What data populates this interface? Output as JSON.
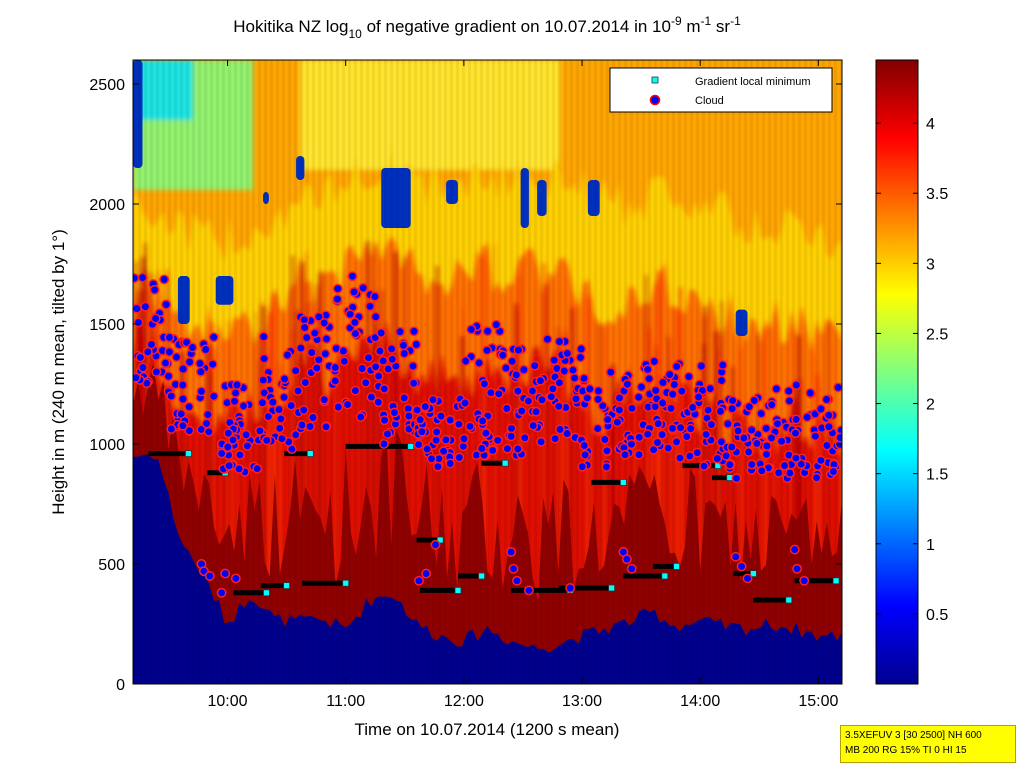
{
  "chart_data": {
    "type": "heatmap",
    "title_parts": {
      "prefix": "Hokitika NZ log",
      "sub": "10",
      "middle": " of negative gradient on 10.07.2014 in 10",
      "sup1": "-9",
      "unit1": " m",
      "sup2": "-1",
      "unit2": " sr",
      "sup3": "-1"
    },
    "xlabel": "Time on 10.07.2014 (1200 s mean)",
    "ylabel": "Height in m (240 m mean, tilted by 1°)",
    "x_range_hours": [
      9.2,
      15.2
    ],
    "xticks": [
      "10:00",
      "11:00",
      "12:00",
      "13:00",
      "14:00",
      "15:00"
    ],
    "xtick_hours": [
      10,
      11,
      12,
      13,
      14,
      15
    ],
    "ylim": [
      0,
      2600
    ],
    "yticks": [
      0,
      500,
      1000,
      1500,
      2000,
      2500
    ],
    "colorbar": {
      "colormap": "jet",
      "range": [
        0,
        4.45
      ],
      "ticks": [
        0.5,
        1,
        1.5,
        2,
        2.5,
        3,
        3.5,
        4
      ],
      "tick_labels": [
        "0.5",
        "1",
        "1.5",
        "2",
        "2.5",
        "3",
        "3.5",
        "4"
      ]
    },
    "legend": {
      "position": "top-right",
      "entries": [
        {
          "label": "Gradient local minimum",
          "marker": "square",
          "color": "#00ffff"
        },
        {
          "label": "Cloud",
          "marker": "circle",
          "color": "#0000ff",
          "edge": "#ff0000"
        }
      ]
    },
    "profiles": [
      {
        "t": 9.2,
        "ground": 950,
        "red": 1450,
        "orange": 1700,
        "yellow": 2050
      },
      {
        "t": 9.4,
        "ground": 960,
        "red": 1380,
        "orange": 1650,
        "yellow": 1950
      },
      {
        "t": 9.6,
        "ground": 600,
        "red": 1200,
        "orange": 1550,
        "yellow": 1900
      },
      {
        "t": 9.8,
        "ground": 450,
        "red": 1100,
        "orange": 1500,
        "yellow": 1850
      },
      {
        "t": 10.0,
        "ground": 250,
        "red": 1050,
        "orange": 1450,
        "yellow": 1850
      },
      {
        "t": 10.2,
        "ground": 380,
        "red": 1150,
        "orange": 1500,
        "yellow": 1900
      },
      {
        "t": 10.4,
        "ground": 270,
        "red": 1150,
        "orange": 1600,
        "yellow": 1950
      },
      {
        "t": 10.6,
        "ground": 260,
        "red": 1350,
        "orange": 1700,
        "yellow": 2000
      },
      {
        "t": 10.8,
        "ground": 270,
        "red": 1250,
        "orange": 1650,
        "yellow": 2000
      },
      {
        "t": 11.0,
        "ground": 230,
        "red": 1450,
        "orange": 1750,
        "yellow": 2100
      },
      {
        "t": 11.2,
        "ground": 350,
        "red": 1450,
        "orange": 1800,
        "yellow": 2150
      },
      {
        "t": 11.4,
        "ground": 380,
        "red": 1400,
        "orange": 1800,
        "yellow": 2150
      },
      {
        "t": 11.6,
        "ground": 250,
        "red": 1300,
        "orange": 1700,
        "yellow": 2100
      },
      {
        "t": 11.8,
        "ground": 200,
        "red": 1250,
        "orange": 1700,
        "yellow": 2050
      },
      {
        "t": 12.0,
        "ground": 180,
        "red": 1300,
        "orange": 1750,
        "yellow": 2100
      },
      {
        "t": 12.2,
        "ground": 230,
        "red": 1350,
        "orange": 1750,
        "yellow": 2100
      },
      {
        "t": 12.4,
        "ground": 180,
        "red": 1300,
        "orange": 1700,
        "yellow": 2100
      },
      {
        "t": 12.6,
        "ground": 150,
        "red": 1350,
        "orange": 1750,
        "yellow": 2150
      },
      {
        "t": 12.8,
        "ground": 170,
        "red": 1300,
        "orange": 1700,
        "yellow": 2100
      },
      {
        "t": 13.0,
        "ground": 200,
        "red": 1200,
        "orange": 1650,
        "yellow": 2050
      },
      {
        "t": 13.2,
        "ground": 230,
        "red": 1150,
        "orange": 1600,
        "yellow": 2000
      },
      {
        "t": 13.4,
        "ground": 260,
        "red": 1200,
        "orange": 1600,
        "yellow": 2000
      },
      {
        "t": 13.6,
        "ground": 300,
        "red": 1250,
        "orange": 1650,
        "yellow": 2050
      },
      {
        "t": 13.8,
        "ground": 240,
        "red": 1250,
        "orange": 1650,
        "yellow": 2050
      },
      {
        "t": 14.0,
        "ground": 260,
        "red": 1150,
        "orange": 1600,
        "yellow": 2000
      },
      {
        "t": 14.2,
        "ground": 240,
        "red": 1100,
        "orange": 1550,
        "yellow": 1950
      },
      {
        "t": 14.4,
        "ground": 230,
        "red": 1050,
        "orange": 1500,
        "yellow": 1900
      },
      {
        "t": 14.6,
        "ground": 250,
        "red": 1050,
        "orange": 1500,
        "yellow": 1900
      },
      {
        "t": 14.8,
        "ground": 230,
        "red": 1100,
        "orange": 1500,
        "yellow": 1900
      },
      {
        "t": 15.0,
        "ground": 200,
        "red": 1050,
        "orange": 1450,
        "yellow": 1850
      },
      {
        "t": 15.2,
        "ground": 200,
        "red": 1000,
        "orange": 1450,
        "yellow": 1850
      }
    ],
    "blue_patches": [
      {
        "t0": 9.2,
        "t1": 9.28,
        "h0": 2150,
        "h1": 2600
      },
      {
        "t0": 9.58,
        "t1": 9.68,
        "h0": 1500,
        "h1": 1700
      },
      {
        "t0": 9.9,
        "t1": 10.05,
        "h0": 1580,
        "h1": 1700
      },
      {
        "t0": 10.3,
        "t1": 10.35,
        "h0": 2000,
        "h1": 2050
      },
      {
        "t0": 10.58,
        "t1": 10.65,
        "h0": 2100,
        "h1": 2200
      },
      {
        "t0": 11.3,
        "t1": 11.55,
        "h0": 1900,
        "h1": 2150
      },
      {
        "t0": 11.85,
        "t1": 11.95,
        "h0": 2000,
        "h1": 2100
      },
      {
        "t0": 12.48,
        "t1": 12.55,
        "h0": 1900,
        "h1": 2150
      },
      {
        "t0": 12.62,
        "t1": 12.7,
        "h0": 1950,
        "h1": 2100
      },
      {
        "t0": 13.05,
        "t1": 13.15,
        "h0": 1950,
        "h1": 2100
      },
      {
        "t0": 14.3,
        "t1": 14.4,
        "h0": 1450,
        "h1": 1560
      }
    ],
    "gradient_minima": [
      {
        "t0": 9.33,
        "t1": 9.67,
        "h": 960
      },
      {
        "t0": 9.83,
        "t1": 9.98,
        "h": 880
      },
      {
        "t0": 10.05,
        "t1": 10.33,
        "h": 380
      },
      {
        "t0": 10.28,
        "t1": 10.5,
        "h": 410
      },
      {
        "t0": 10.48,
        "t1": 10.7,
        "h": 960
      },
      {
        "t0": 10.63,
        "t1": 11.0,
        "h": 420
      },
      {
        "t0": 11.0,
        "t1": 11.55,
        "h": 990
      },
      {
        "t0": 11.6,
        "t1": 11.8,
        "h": 600
      },
      {
        "t0": 11.63,
        "t1": 11.95,
        "h": 390
      },
      {
        "t0": 11.95,
        "t1": 12.15,
        "h": 450
      },
      {
        "t0": 12.15,
        "t1": 12.35,
        "h": 920
      },
      {
        "t0": 12.4,
        "t1": 12.9,
        "h": 390
      },
      {
        "t0": 12.8,
        "t1": 13.25,
        "h": 400
      },
      {
        "t0": 13.08,
        "t1": 13.35,
        "h": 840
      },
      {
        "t0": 13.35,
        "t1": 13.7,
        "h": 450
      },
      {
        "t0": 13.6,
        "t1": 13.8,
        "h": 490
      },
      {
        "t0": 13.85,
        "t1": 14.15,
        "h": 910
      },
      {
        "t0": 14.1,
        "t1": 14.25,
        "h": 860
      },
      {
        "t0": 14.28,
        "t1": 14.45,
        "h": 460
      },
      {
        "t0": 14.45,
        "t1": 14.75,
        "h": 350
      },
      {
        "t0": 14.8,
        "t1": 15.15,
        "h": 430
      }
    ],
    "cloud_bands": [
      {
        "t0": 9.2,
        "t1": 9.5,
        "h0": 1250,
        "h1": 1700
      },
      {
        "t0": 9.5,
        "t1": 9.9,
        "h0": 1050,
        "h1": 1450
      },
      {
        "t0": 9.9,
        "t1": 10.3,
        "h0": 850,
        "h1": 1250
      },
      {
        "t0": 10.3,
        "t1": 10.6,
        "h0": 950,
        "h1": 1450
      },
      {
        "t0": 10.6,
        "t1": 10.9,
        "h0": 1050,
        "h1": 1550
      },
      {
        "t0": 10.9,
        "t1": 11.3,
        "h0": 1100,
        "h1": 1700
      },
      {
        "t0": 11.3,
        "t1": 11.6,
        "h0": 1000,
        "h1": 1500
      },
      {
        "t0": 11.6,
        "t1": 12.0,
        "h0": 900,
        "h1": 1200
      },
      {
        "t0": 12.0,
        "t1": 12.4,
        "h0": 950,
        "h1": 1500
      },
      {
        "t0": 12.4,
        "t1": 12.7,
        "h0": 950,
        "h1": 1400
      },
      {
        "t0": 12.7,
        "t1": 13.0,
        "h0": 1000,
        "h1": 1450
      },
      {
        "t0": 13.0,
        "t1": 13.4,
        "h0": 900,
        "h1": 1300
      },
      {
        "t0": 13.4,
        "t1": 13.8,
        "h0": 950,
        "h1": 1350
      },
      {
        "t0": 13.8,
        "t1": 14.2,
        "h0": 900,
        "h1": 1350
      },
      {
        "t0": 14.2,
        "t1": 14.6,
        "h0": 850,
        "h1": 1200
      },
      {
        "t0": 14.6,
        "t1": 15.2,
        "h0": 850,
        "h1": 1250
      }
    ],
    "low_clouds": [
      [
        9.78,
        500
      ],
      [
        9.8,
        470
      ],
      [
        9.85,
        450
      ],
      [
        9.95,
        380
      ],
      [
        9.98,
        460
      ],
      [
        10.07,
        440
      ],
      [
        11.62,
        430
      ],
      [
        11.68,
        460
      ],
      [
        11.76,
        580
      ],
      [
        12.4,
        550
      ],
      [
        12.42,
        480
      ],
      [
        12.45,
        430
      ],
      [
        12.55,
        390
      ],
      [
        12.9,
        400
      ],
      [
        13.35,
        550
      ],
      [
        13.38,
        520
      ],
      [
        13.42,
        480
      ],
      [
        14.05,
        1040
      ],
      [
        14.3,
        530
      ],
      [
        14.35,
        490
      ],
      [
        14.4,
        440
      ],
      [
        14.8,
        560
      ],
      [
        14.82,
        480
      ],
      [
        14.88,
        430
      ]
    ],
    "info_lines": [
      "3.5XEFUV 3 [30 2500] NH 600",
      "MB 200 RG 15% TI 0 HI 15"
    ]
  }
}
